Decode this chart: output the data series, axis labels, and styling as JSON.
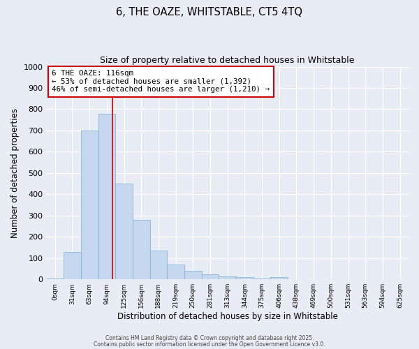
{
  "title_line1": "6, THE OAZE, WHITSTABLE, CT5 4TQ",
  "title_line2": "Size of property relative to detached houses in Whitstable",
  "xlabel": "Distribution of detached houses by size in Whitstable",
  "ylabel": "Number of detached properties",
  "bin_labels": [
    "0sqm",
    "31sqm",
    "63sqm",
    "94sqm",
    "125sqm",
    "156sqm",
    "188sqm",
    "219sqm",
    "250sqm",
    "281sqm",
    "313sqm",
    "344sqm",
    "375sqm",
    "406sqm",
    "438sqm",
    "469sqm",
    "500sqm",
    "531sqm",
    "563sqm",
    "594sqm",
    "625sqm"
  ],
  "bin_values": [
    5,
    130,
    700,
    780,
    450,
    280,
    135,
    70,
    40,
    25,
    15,
    10,
    5,
    10,
    2,
    0,
    0,
    0,
    0,
    0,
    0
  ],
  "bar_color": "#c5d8f0",
  "bar_edge_color": "#7aafd4",
  "vline_x": 3.84,
  "vline_color": "#cc0000",
  "annotation_line1": "6 THE OAZE: 116sqm",
  "annotation_line2": "← 53% of detached houses are smaller (1,392)",
  "annotation_line3": "46% of semi-detached houses are larger (1,210) →",
  "annotation_box_color": "#ffffff",
  "annotation_box_edge": "#cc0000",
  "ylim": [
    0,
    1000
  ],
  "yticks": [
    0,
    100,
    200,
    300,
    400,
    500,
    600,
    700,
    800,
    900,
    1000
  ],
  "bg_color": "#e8edf5",
  "plot_bg_color": "#e8edf5",
  "grid_color": "#ffffff",
  "footnote1": "Contains HM Land Registry data © Crown copyright and database right 2025.",
  "footnote2": "Contains public sector information licensed under the Open Government Licence v3.0."
}
